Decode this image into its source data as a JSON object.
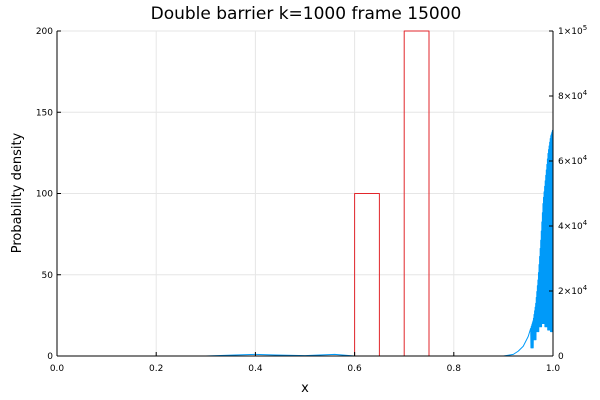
{
  "chart_data": {
    "type": "line",
    "title": "Double barrier k=1000 frame 15000",
    "xlabel": "x",
    "ylabel": "Probability density",
    "xlim": [
      0,
      1
    ],
    "ylim": [
      0,
      200
    ],
    "y2lim": [
      0,
      100000
    ],
    "grid": true,
    "legend": "none",
    "x_ticks": [
      "0.0",
      "0.2",
      "0.4",
      "0.6",
      "0.8",
      "1.0"
    ],
    "y_ticks": [
      "0",
      "50",
      "100",
      "150",
      "200"
    ],
    "y2_ticks": [
      {
        "value": 0,
        "base": "0",
        "exp": ""
      },
      {
        "value": 20000,
        "base": "2×10",
        "exp": "4"
      },
      {
        "value": 40000,
        "base": "4×10",
        "exp": "4"
      },
      {
        "value": 60000,
        "base": "6×10",
        "exp": "4"
      },
      {
        "value": 80000,
        "base": "8×10",
        "exp": "4"
      },
      {
        "value": 100000,
        "base": "1×10",
        "exp": "5"
      }
    ],
    "colors": {
      "density": "#009af9",
      "potential": "#e2262b",
      "grid": "#e6e6e6"
    },
    "series": [
      {
        "axis": "left",
        "color": "#009af9",
        "x": [
          0.0,
          0.3,
          0.36,
          0.4,
          0.44,
          0.5,
          0.56,
          0.6,
          0.9,
          0.92,
          0.93,
          0.94,
          0.95,
          0.96,
          0.965,
          0.97,
          0.975,
          0.98,
          0.985,
          0.99,
          0.995,
          1.0
        ],
        "values": [
          0,
          0,
          0.6,
          1.0,
          0.6,
          0.2,
          1.0,
          0,
          0,
          1,
          3,
          6,
          12,
          22,
          32,
          48,
          70,
          95,
          110,
          125,
          135,
          140
        ],
        "oscillation": {
          "from_x": 0.955,
          "to_x": 1.0,
          "min_values": [
            5,
            10,
            15,
            18,
            20,
            18,
            16,
            15
          ]
        }
      },
      {
        "axis": "right",
        "color": "#e2262b",
        "x": [
          0.0,
          0.6,
          0.6,
          0.65,
          0.65,
          0.7,
          0.7,
          0.75,
          0.75,
          1.0
        ],
        "values": [
          0,
          0,
          50000,
          50000,
          0,
          0,
          100000,
          100000,
          0,
          0
        ]
      }
    ]
  }
}
